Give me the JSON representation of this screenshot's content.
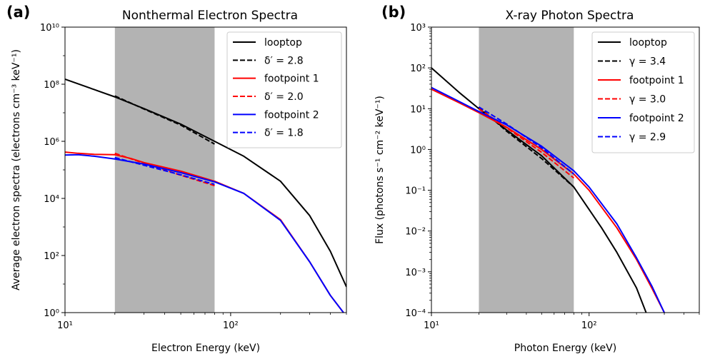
{
  "chart_data": [
    {
      "type": "line",
      "panel_label": "(a)",
      "title": "Nonthermal Electron Spectra",
      "xlabel": "Electron Energy (keV)",
      "ylabel": "Average electron spectra (electrons cm⁻³ keV⁻¹)",
      "xscale": "log",
      "yscale": "log",
      "xlim": [
        10,
        500
      ],
      "ylim": [
        1,
        10000000000
      ],
      "xticks": [
        {
          "value": 10,
          "label": "10¹"
        },
        {
          "value": 100,
          "label": "10²"
        }
      ],
      "yticks": [
        {
          "value": 1,
          "label": "10⁰"
        },
        {
          "value": 100,
          "label": "10²"
        },
        {
          "value": 10000,
          "label": "10⁴"
        },
        {
          "value": 1000000,
          "label": "10⁶"
        },
        {
          "value": 100000000,
          "label": "10⁸"
        },
        {
          "value": 10000000000,
          "label": "10¹⁰"
        }
      ],
      "shaded_region": {
        "x": [
          20,
          80
        ],
        "color": "#b3b3b3"
      },
      "legend_position": "top-right",
      "series": [
        {
          "name": "looptop",
          "color": "#000000",
          "style": "solid",
          "x": [
            10,
            15,
            20,
            30,
            50,
            80,
            120,
            200,
            300,
            400,
            500
          ],
          "y": [
            150000000,
            65000000,
            36000000,
            14000000,
            4000000,
            1000000,
            300000,
            40000,
            2500,
            140,
            8
          ]
        },
        {
          "name": "δ′ =  2.8",
          "color": "#000000",
          "style": "dashed",
          "x": [
            20,
            30,
            50,
            80
          ],
          "y": [
            39000000,
            13500000,
            3700000,
            800000
          ]
        },
        {
          "name": "footpoint 1",
          "color": "#ff0000",
          "style": "solid",
          "x": [
            10,
            12,
            15,
            20,
            25,
            30,
            50,
            80,
            120,
            200,
            300,
            400,
            480
          ],
          "y": [
            420000,
            380000,
            350000,
            340000,
            250000,
            180000,
            90000,
            40000,
            15000,
            1800,
            60,
            4,
            1
          ]
        },
        {
          "name": "δ′ =  2.0",
          "color": "#ff0000",
          "style": "dashed",
          "x": [
            20,
            30,
            50,
            80
          ],
          "y": [
            380000,
            170000,
            65000,
            28000
          ]
        },
        {
          "name": "footpoint 2",
          "color": "#0000ff",
          "style": "solid",
          "x": [
            10,
            12,
            15,
            20,
            30,
            50,
            80,
            120,
            200,
            300,
            400,
            480
          ],
          "y": [
            330000,
            340000,
            300000,
            240000,
            160000,
            80000,
            38000,
            15000,
            1700,
            60,
            4,
            1
          ]
        },
        {
          "name": "δ′ =  1.8",
          "color": "#0000ff",
          "style": "dashed",
          "x": [
            20,
            30,
            50,
            80
          ],
          "y": [
            270000,
            145000,
            67000,
            31000
          ]
        }
      ]
    },
    {
      "type": "line",
      "panel_label": "(b)",
      "title": "X-ray Photon Spectra",
      "xlabel": "Photon Energy (keV)",
      "ylabel": "Flux (photons s⁻¹ cm⁻² keV⁻¹)",
      "xscale": "log",
      "yscale": "log",
      "xlim": [
        10,
        500
      ],
      "ylim": [
        0.0001,
        1000
      ],
      "xticks": [
        {
          "value": 10,
          "label": "10¹"
        },
        {
          "value": 100,
          "label": "10²"
        }
      ],
      "yticks": [
        {
          "value": 0.0001,
          "label": "10⁻⁴"
        },
        {
          "value": 0.001,
          "label": "10⁻³"
        },
        {
          "value": 0.01,
          "label": "10⁻²"
        },
        {
          "value": 0.1,
          "label": "10⁻¹"
        },
        {
          "value": 1,
          "label": "10⁰"
        },
        {
          "value": 10,
          "label": "10¹"
        },
        {
          "value": 100,
          "label": "10²"
        },
        {
          "value": 1000,
          "label": "10³"
        }
      ],
      "shaded_region": {
        "x": [
          20,
          80
        ],
        "color": "#b3b3b3"
      },
      "legend_position": "top-right",
      "series": [
        {
          "name": "looptop",
          "color": "#000000",
          "style": "solid",
          "x": [
            10,
            15,
            20,
            30,
            50,
            80,
            120,
            150,
            200,
            230
          ],
          "y": [
            100,
            25,
            10,
            3,
            0.7,
            0.12,
            0.012,
            0.003,
            0.0004,
            0.0001
          ]
        },
        {
          "name": "γ =  3.4",
          "color": "#000000",
          "style": "dashed",
          "x": [
            20,
            30,
            50,
            80
          ],
          "y": [
            11,
            2.8,
            0.6,
            0.12
          ]
        },
        {
          "name": "footpoint 1",
          "color": "#ff0000",
          "style": "solid",
          "x": [
            10,
            15,
            20,
            30,
            50,
            80,
            100,
            150,
            200,
            250,
            300
          ],
          "y": [
            30,
            14,
            8,
            3.5,
            1,
            0.25,
            0.1,
            0.012,
            0.002,
            0.0004,
            0.0001
          ]
        },
        {
          "name": "γ =  3.0",
          "color": "#ff0000",
          "style": "dashed",
          "x": [
            20,
            30,
            50,
            80
          ],
          "y": [
            10,
            3.4,
            0.85,
            0.2
          ]
        },
        {
          "name": "footpoint 2",
          "color": "#0000ff",
          "style": "solid",
          "x": [
            10,
            15,
            20,
            30,
            50,
            80,
            100,
            150,
            200,
            250,
            300
          ],
          "y": [
            33,
            15,
            8.5,
            4,
            1.2,
            0.3,
            0.12,
            0.015,
            0.0022,
            0.00045,
            0.0001
          ]
        },
        {
          "name": "γ =  2.9",
          "color": "#0000ff",
          "style": "dashed",
          "x": [
            20,
            30,
            50,
            80
          ],
          "y": [
            11,
            4.2,
            1.1,
            0.25
          ]
        }
      ]
    }
  ]
}
